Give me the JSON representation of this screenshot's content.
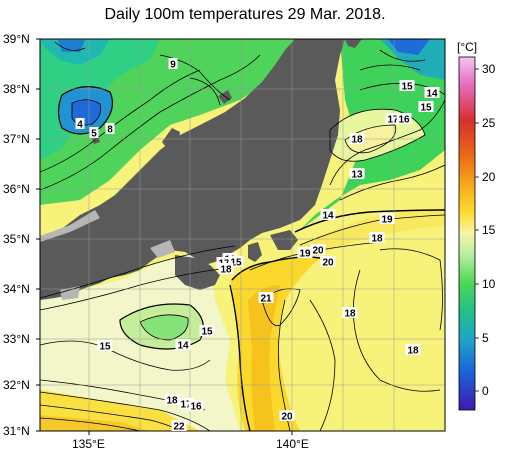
{
  "title": "Daily 100m temperatures 29 Mar. 2018.",
  "lat_labels": [
    "39°N",
    "38°N",
    "37°N",
    "36°N",
    "35°N",
    "34°N",
    "33°N",
    "32°N",
    "31°N"
  ],
  "lon_labels": [
    "135°E",
    "140°E"
  ],
  "colorbar": {
    "unit": "[°C]",
    "ticks": [
      "30",
      "25",
      "20",
      "15",
      "10",
      "5",
      "0"
    ],
    "colors": [
      "#f5b3ef",
      "#e062b8",
      "#d22a2a",
      "#e85a1a",
      "#f08c16",
      "#f6b81e",
      "#fbe033",
      "#f6f05a",
      "#f4f4b0",
      "#d8f4b8",
      "#8ce67c",
      "#3ed252",
      "#27c46a",
      "#20b3a8",
      "#1b8ad4",
      "#1f52d8",
      "#3e1fb8"
    ]
  },
  "contour_labels": [
    {
      "text": "9",
      "color": "#000"
    },
    {
      "text": "4",
      "color": "#000"
    },
    {
      "text": "5",
      "color": "#000"
    },
    {
      "text": "8",
      "color": "#000"
    },
    {
      "text": "15",
      "color": "#000"
    },
    {
      "text": "14",
      "color": "#000"
    },
    {
      "text": "15",
      "color": "#000"
    },
    {
      "text": "17",
      "color": "#000"
    },
    {
      "text": "16",
      "color": "#000"
    },
    {
      "text": "18",
      "color": "#000"
    },
    {
      "text": "13",
      "color": "#000"
    },
    {
      "text": "14",
      "color": "#000"
    },
    {
      "text": "19",
      "color": "#000"
    },
    {
      "text": "18",
      "color": "#000"
    },
    {
      "text": "19",
      "color": "#000"
    },
    {
      "text": "20",
      "color": "#000"
    },
    {
      "text": "20",
      "color": "#000"
    },
    {
      "text": "16",
      "color": "#000"
    },
    {
      "text": "17",
      "color": "#000"
    },
    {
      "text": "15",
      "color": "#000"
    },
    {
      "text": "18",
      "color": "#000"
    },
    {
      "text": "21",
      "color": "#000"
    },
    {
      "text": "18",
      "color": "#000"
    },
    {
      "text": "18",
      "color": "#000"
    },
    {
      "text": "15",
      "color": "#000"
    },
    {
      "text": "14",
      "color": "#000"
    },
    {
      "text": "15",
      "color": "#000"
    },
    {
      "text": "18",
      "color": "#000"
    },
    {
      "text": "17",
      "color": "#000"
    },
    {
      "text": "16",
      "color": "#000"
    },
    {
      "text": "22",
      "color": "#000"
    },
    {
      "text": "20",
      "color": "#000"
    }
  ]
}
